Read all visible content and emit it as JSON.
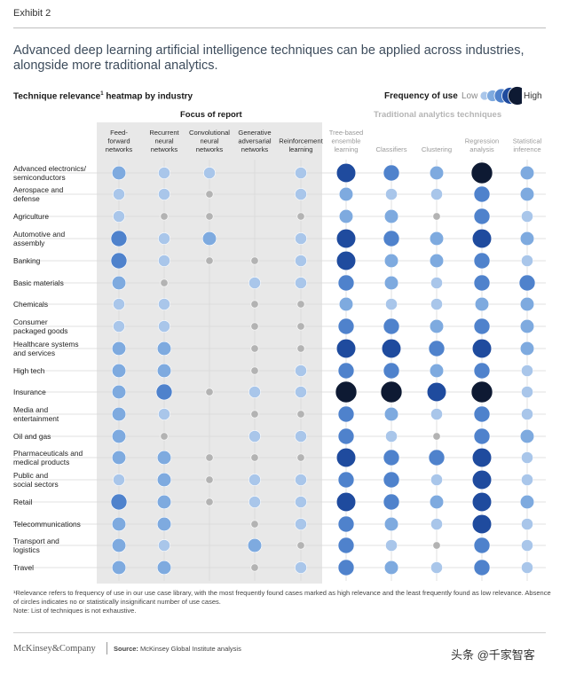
{
  "exhibit": "Exhibit 2",
  "headline": "Advanced deep learning artificial intelligence techniques can be applied across industries, alongside more traditional analytics.",
  "heatmap_title": "Technique relevance",
  "heatmap_title_sup": "1",
  "heatmap_title_rest": " heatmap by industry",
  "legend": {
    "title": "Frequency of use",
    "low": "Low",
    "high": "High"
  },
  "focus_title": "Focus of report",
  "traditional_title": "Traditional analytics techniques",
  "footnote1": "¹Relevance refers to frequency of use in our use case library, with the most frequently found cases marked as high relevance and the least frequently found as low relevance. Absence of circles indicates no or statistically insignificant number of use cases.",
  "footnote2": "Note: List of techniques is not exhaustive.",
  "brand": "McKinsey&Company",
  "source_label": "Source:",
  "source_text": "McKinsey Global Institute analysis",
  "watermark": "头条 @千家智客",
  "colors": {
    "level0": "#b3b3b3",
    "level1": "#a9c6ea",
    "level2": "#7eaadf",
    "level3": "#4f82cc",
    "level4": "#1f4b9e",
    "level5": "#0e1a33",
    "focus_band": "#e8e8e8",
    "gridline": "#d9d9d9",
    "headline": "#3d4c5c"
  },
  "chart_data": {
    "type": "heatmap",
    "title": "Technique relevance heatmap by industry",
    "scale": "0 = low (grey) ... 5 = highest relevance; null = no circle",
    "columns": [
      "Feed-\nforward\nnetworks",
      "Recurrent\nneural\nnetworks",
      "Convolutional\nneural\nnetworks",
      "Generative\nadversarial\nnetworks",
      "Reinforcement\nlearning",
      "Tree-based\nensemble\nlearning",
      "Classifiers",
      "Clustering",
      "Regression\nanalysis",
      "Statistical\ninference"
    ],
    "column_groups": [
      {
        "name": "Focus of report",
        "columns": [
          0,
          1,
          2,
          3,
          4
        ]
      },
      {
        "name": "Traditional analytics techniques",
        "columns": [
          5,
          6,
          7,
          8,
          9
        ]
      }
    ],
    "rows": [
      "Advanced electronics/\nsemiconductors",
      "Aerospace and\ndefense",
      "Agriculture",
      "Automotive and\nassembly",
      "Banking",
      "Basic materials",
      "Chemicals",
      "Consumer\npackaged goods",
      "Healthcare systems\nand services",
      "High tech",
      "Insurance",
      "Media and\nentertainment",
      "Oil and gas",
      "Pharmaceuticals and\nmedical products",
      "Public and\nsocial sectors",
      "Retail",
      "Telecommunications",
      "Transport and\nlogistics",
      "Travel"
    ],
    "values": [
      [
        2,
        1,
        1,
        null,
        1,
        4,
        3,
        2,
        5,
        2
      ],
      [
        1,
        1,
        0,
        null,
        1,
        2,
        1,
        1,
        3,
        2
      ],
      [
        1,
        0,
        0,
        null,
        0,
        2,
        2,
        0,
        3,
        1
      ],
      [
        3,
        1,
        2,
        null,
        1,
        4,
        3,
        2,
        4,
        2
      ],
      [
        3,
        1,
        0,
        0,
        1,
        4,
        2,
        2,
        3,
        1
      ],
      [
        2,
        0,
        null,
        1,
        1,
        3,
        2,
        1,
        3,
        3
      ],
      [
        1,
        1,
        null,
        0,
        0,
        2,
        1,
        1,
        2,
        2
      ],
      [
        1,
        1,
        null,
        0,
        0,
        3,
        3,
        2,
        3,
        2
      ],
      [
        2,
        2,
        null,
        0,
        0,
        4,
        4,
        3,
        4,
        2
      ],
      [
        2,
        2,
        null,
        0,
        1,
        3,
        3,
        2,
        3,
        1
      ],
      [
        2,
        3,
        0,
        1,
        1,
        5,
        5,
        4,
        5,
        1
      ],
      [
        2,
        1,
        null,
        0,
        0,
        3,
        2,
        1,
        3,
        1
      ],
      [
        2,
        0,
        null,
        1,
        1,
        3,
        1,
        0,
        3,
        2
      ],
      [
        2,
        2,
        0,
        0,
        0,
        4,
        3,
        3,
        4,
        1
      ],
      [
        1,
        2,
        0,
        1,
        1,
        3,
        3,
        1,
        4,
        1
      ],
      [
        3,
        2,
        0,
        1,
        1,
        4,
        3,
        2,
        4,
        2
      ],
      [
        2,
        2,
        null,
        0,
        1,
        3,
        2,
        1,
        4,
        1
      ],
      [
        2,
        1,
        null,
        2,
        0,
        3,
        1,
        0,
        3,
        1
      ],
      [
        2,
        2,
        null,
        0,
        1,
        3,
        2,
        1,
        3,
        1
      ]
    ]
  }
}
